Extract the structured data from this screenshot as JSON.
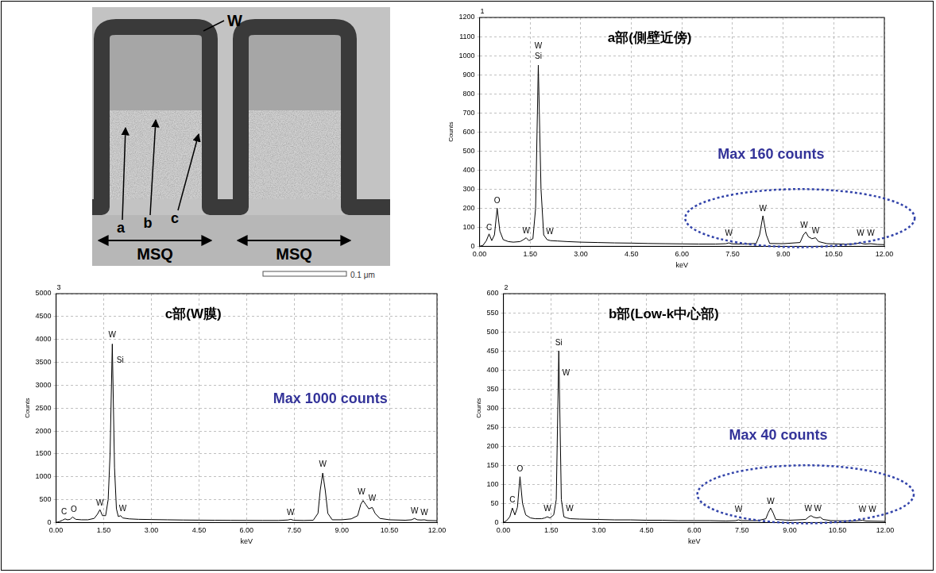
{
  "image": {
    "film": "W",
    "points": [
      "a",
      "b",
      "c"
    ],
    "regions": [
      "MSQ",
      "MSQ"
    ],
    "scale_bar": "0.1 μm"
  },
  "chart_data": [
    {
      "type": "line",
      "spectrum_id": "1",
      "title": "a部(側壁近傍)",
      "note": "Max 160 counts",
      "x_label": "keV",
      "y_label": "Counts",
      "color": "#000000",
      "line_style": "solid",
      "grid": true,
      "x": [
        0,
        0.1,
        0.2,
        0.28,
        0.36,
        0.44,
        0.52,
        0.6,
        0.7,
        0.85,
        1.0,
        1.2,
        1.3,
        1.38,
        1.46,
        1.58,
        1.66,
        1.74,
        1.82,
        1.9,
        2.0,
        2.1,
        2.3,
        2.6,
        3.0,
        3.5,
        4.0,
        4.5,
        5.0,
        5.5,
        6.0,
        6.5,
        7.0,
        7.3,
        7.39,
        7.48,
        7.8,
        8.2,
        8.3,
        8.4,
        8.5,
        8.6,
        9.0,
        9.5,
        9.6,
        9.67,
        9.75,
        9.85,
        9.96,
        10.05,
        10.3,
        10.8,
        11.1,
        11.29,
        11.4,
        11.6,
        11.8,
        12.0
      ],
      "values": [
        0,
        5,
        30,
        65,
        30,
        60,
        200,
        80,
        35,
        25,
        22,
        25,
        35,
        45,
        30,
        40,
        200,
        950,
        300,
        60,
        35,
        30,
        28,
        25,
        22,
        20,
        18,
        17,
        15,
        14,
        13,
        12,
        12,
        14,
        18,
        13,
        12,
        15,
        60,
        160,
        60,
        15,
        14,
        20,
        60,
        75,
        50,
        40,
        45,
        25,
        14,
        12,
        12,
        18,
        12,
        14,
        10,
        9
      ],
      "xlim": [
        0,
        12
      ],
      "xticks": [
        {
          "value": 0,
          "label": "0.00"
        },
        {
          "value": 1.5,
          "label": "1.50"
        },
        {
          "value": 3,
          "label": "3.00"
        },
        {
          "value": 4.5,
          "label": "4.50"
        },
        {
          "value": 6,
          "label": "6.00"
        },
        {
          "value": 7.5,
          "label": "7.50"
        },
        {
          "value": 9,
          "label": "9.00"
        },
        {
          "value": 10.5,
          "label": "10.50"
        },
        {
          "value": 12,
          "label": "12.00"
        }
      ],
      "ylim": [
        0,
        1200
      ],
      "yticks": [
        0,
        100,
        200,
        300,
        400,
        500,
        600,
        700,
        800,
        900,
        1000,
        1100,
        1200
      ],
      "annotations": [
        {
          "text": "C",
          "x": 0.28,
          "y": 75
        },
        {
          "text": "O",
          "x": 0.52,
          "y": 215
        },
        {
          "text": "W",
          "x": 1.38,
          "y": 60
        },
        {
          "text": "Si",
          "x": 1.74,
          "y": 975
        },
        {
          "text": "W",
          "x": 1.74,
          "y": 1030
        },
        {
          "text": "W",
          "x": 2.08,
          "y": 55
        },
        {
          "text": "W",
          "x": 7.39,
          "y": 45
        },
        {
          "text": "W",
          "x": 8.4,
          "y": 175
        },
        {
          "text": "W",
          "x": 9.62,
          "y": 90
        },
        {
          "text": "W",
          "x": 9.96,
          "y": 60
        },
        {
          "text": "W",
          "x": 11.29,
          "y": 45
        },
        {
          "text": "W",
          "x": 11.6,
          "y": 45
        }
      ]
    },
    {
      "type": "line",
      "spectrum_id": "3",
      "title": "c部(W膜)",
      "note": "Max 1000 counts",
      "x_label": "keV",
      "y_label": "Counts",
      "color": "#000000",
      "line_style": "solid",
      "grid": true,
      "x": [
        0,
        0.1,
        0.2,
        0.28,
        0.36,
        0.44,
        0.52,
        0.62,
        0.8,
        1.0,
        1.2,
        1.3,
        1.38,
        1.46,
        1.56,
        1.64,
        1.7,
        1.77,
        1.84,
        1.9,
        1.96,
        2.03,
        2.1,
        2.3,
        2.6,
        3.0,
        3.5,
        4.0,
        4.5,
        5.0,
        5.5,
        6.0,
        6.5,
        7.0,
        7.3,
        7.39,
        7.48,
        7.8,
        8.1,
        8.25,
        8.32,
        8.4,
        8.48,
        8.56,
        8.7,
        9.0,
        9.3,
        9.5,
        9.6,
        9.67,
        9.75,
        9.85,
        9.96,
        10.05,
        10.2,
        10.5,
        11.0,
        11.2,
        11.29,
        11.38,
        11.5,
        11.6,
        11.7,
        12.0
      ],
      "values": [
        0,
        20,
        50,
        80,
        60,
        70,
        120,
        70,
        60,
        60,
        90,
        180,
        280,
        150,
        150,
        500,
        1500,
        3900,
        1200,
        300,
        130,
        150,
        100,
        80,
        70,
        65,
        60,
        55,
        52,
        50,
        48,
        46,
        45,
        45,
        55,
        70,
        50,
        45,
        50,
        200,
        700,
        1080,
        700,
        200,
        60,
        60,
        80,
        150,
        400,
        480,
        400,
        300,
        330,
        200,
        90,
        60,
        50,
        60,
        90,
        60,
        55,
        60,
        45,
        40
      ],
      "xlim": [
        0,
        12
      ],
      "xticks": [
        {
          "value": 0,
          "label": "0.00"
        },
        {
          "value": 1.5,
          "label": "1.50"
        },
        {
          "value": 3,
          "label": "3.00"
        },
        {
          "value": 4.5,
          "label": "4.50"
        },
        {
          "value": 6,
          "label": "6.00"
        },
        {
          "value": 7.5,
          "label": "7.50"
        },
        {
          "value": 9,
          "label": "9.00"
        },
        {
          "value": 10.5,
          "label": "10.50"
        },
        {
          "value": 12,
          "label": "12.00"
        }
      ],
      "ylim": [
        0,
        5000
      ],
      "yticks": [
        0,
        500,
        1000,
        1500,
        2000,
        2500,
        3000,
        3500,
        4000,
        4500,
        5000
      ],
      "annotations": [
        {
          "text": "C",
          "x": 0.25,
          "y": 140
        },
        {
          "text": "O",
          "x": 0.56,
          "y": 190
        },
        {
          "text": "W",
          "x": 1.38,
          "y": 340
        },
        {
          "text": "W",
          "x": 1.77,
          "y": 4000
        },
        {
          "text": "Si",
          "x": 2.02,
          "y": 3450
        },
        {
          "text": "W",
          "x": 2.1,
          "y": 210
        },
        {
          "text": "W",
          "x": 7.39,
          "y": 120
        },
        {
          "text": "W",
          "x": 8.4,
          "y": 1180
        },
        {
          "text": "W",
          "x": 9.62,
          "y": 580
        },
        {
          "text": "W",
          "x": 9.96,
          "y": 430
        },
        {
          "text": "W",
          "x": 11.29,
          "y": 160
        },
        {
          "text": "W",
          "x": 11.6,
          "y": 130
        }
      ]
    },
    {
      "type": "line",
      "spectrum_id": "2",
      "title": "b部(Low-k中心部)",
      "note": "Max 40 counts",
      "x_label": "keV",
      "y_label": "Counts",
      "color": "#000000",
      "line_style": "solid",
      "grid": true,
      "x": [
        0,
        0.1,
        0.2,
        0.28,
        0.36,
        0.44,
        0.52,
        0.6,
        0.7,
        0.85,
        1.0,
        1.2,
        1.3,
        1.38,
        1.46,
        1.58,
        1.66,
        1.74,
        1.82,
        1.9,
        2.0,
        2.1,
        2.4,
        3.0,
        3.5,
        4.0,
        4.5,
        5.0,
        5.5,
        6.0,
        6.5,
        7.0,
        7.3,
        7.39,
        7.48,
        8.0,
        8.25,
        8.32,
        8.4,
        8.48,
        8.56,
        9.0,
        9.5,
        9.6,
        9.67,
        9.75,
        9.85,
        9.96,
        10.05,
        10.3,
        11.0,
        11.29,
        11.4,
        12.0
      ],
      "values": [
        0,
        5,
        15,
        38,
        20,
        40,
        120,
        50,
        20,
        12,
        10,
        10,
        12,
        15,
        12,
        20,
        60,
        450,
        60,
        15,
        12,
        10,
        9,
        8,
        7,
        7,
        6,
        6,
        5,
        5,
        5,
        4,
        5,
        7,
        5,
        5,
        10,
        25,
        38,
        25,
        8,
        6,
        8,
        15,
        18,
        14,
        12,
        14,
        8,
        5,
        4,
        6,
        4,
        3
      ],
      "xlim": [
        0,
        12
      ],
      "xticks": [
        {
          "value": 0,
          "label": "0.00"
        },
        {
          "value": 1.5,
          "label": "1.50"
        },
        {
          "value": 3,
          "label": "3.00"
        },
        {
          "value": 4.5,
          "label": "4.50"
        },
        {
          "value": 6,
          "label": "6.00"
        },
        {
          "value": 7.5,
          "label": "7.50"
        },
        {
          "value": 9,
          "label": "9.00"
        },
        {
          "value": 10.5,
          "label": "10.50"
        },
        {
          "value": 12,
          "label": "12.00"
        }
      ],
      "ylim": [
        0,
        600
      ],
      "yticks": [
        0,
        50,
        100,
        150,
        200,
        250,
        300,
        350,
        400,
        450,
        500,
        550,
        600
      ],
      "annotations": [
        {
          "text": "C",
          "x": 0.28,
          "y": 48
        },
        {
          "text": "O",
          "x": 0.52,
          "y": 130
        },
        {
          "text": "W",
          "x": 1.38,
          "y": 25
        },
        {
          "text": "Si",
          "x": 1.74,
          "y": 460
        },
        {
          "text": "W",
          "x": 1.97,
          "y": 380
        },
        {
          "text": "W",
          "x": 2.08,
          "y": 25
        },
        {
          "text": "W",
          "x": 7.39,
          "y": 24
        },
        {
          "text": "W",
          "x": 8.4,
          "y": 45
        },
        {
          "text": "W",
          "x": 9.58,
          "y": 26
        },
        {
          "text": "W",
          "x": 9.88,
          "y": 26
        },
        {
          "text": "W",
          "x": 11.29,
          "y": 24
        },
        {
          "text": "W",
          "x": 11.6,
          "y": 24
        }
      ]
    }
  ]
}
